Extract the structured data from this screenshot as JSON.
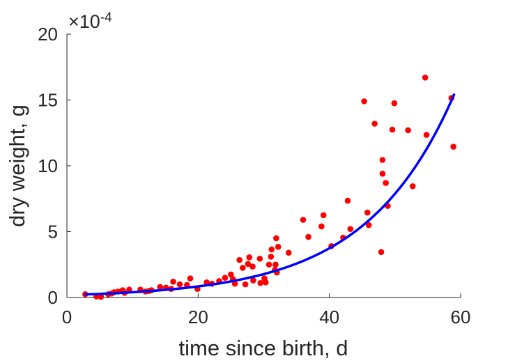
{
  "chart_data": {
    "type": "scatter",
    "xlabel": "time since birth, d",
    "ylabel": "dry weight, g",
    "y_multiplier_label": {
      "times": "×10",
      "exponent": "-4"
    },
    "xlim": [
      0,
      60
    ],
    "ylim": [
      0,
      20
    ],
    "y_scale_factor": 0.0001,
    "x_ticks": [
      0,
      20,
      40,
      60
    ],
    "y_ticks": [
      0,
      5,
      10,
      15,
      20
    ],
    "x_tick_labels": [
      "0",
      "20",
      "40",
      "60"
    ],
    "y_tick_labels": [
      "0",
      "5",
      "10",
      "15",
      "20"
    ],
    "grid": false,
    "series": [
      {
        "kind": "scatter",
        "color": "#ff0000",
        "points": [
          [
            2.8,
            0.25
          ],
          [
            4.5,
            0.08
          ],
          [
            5.2,
            0.05
          ],
          [
            6.3,
            0.25
          ],
          [
            6.8,
            0.3
          ],
          [
            7.2,
            0.4
          ],
          [
            7.8,
            0.45
          ],
          [
            8.5,
            0.55
          ],
          [
            8.8,
            0.35
          ],
          [
            9.5,
            0.6
          ],
          [
            11.2,
            0.6
          ],
          [
            12.0,
            0.45
          ],
          [
            12.5,
            0.5
          ],
          [
            12.9,
            0.55
          ],
          [
            14.2,
            0.8
          ],
          [
            15.1,
            0.75
          ],
          [
            15.9,
            0.65
          ],
          [
            16.2,
            1.2
          ],
          [
            17.2,
            1.0
          ],
          [
            18.3,
            0.95
          ],
          [
            18.8,
            1.45
          ],
          [
            19.9,
            0.65
          ],
          [
            21.3,
            1.15
          ],
          [
            22.1,
            1.05
          ],
          [
            23.2,
            1.25
          ],
          [
            24.1,
            1.5
          ],
          [
            25.0,
            1.75
          ],
          [
            25.3,
            1.4
          ],
          [
            25.6,
            1.05
          ],
          [
            26.3,
            2.85
          ],
          [
            26.8,
            2.25
          ],
          [
            27.2,
            1.0
          ],
          [
            27.6,
            2.55
          ],
          [
            27.8,
            3.05
          ],
          [
            28.3,
            2.35
          ],
          [
            28.4,
            1.3
          ],
          [
            29.4,
            2.95
          ],
          [
            29.5,
            1.1
          ],
          [
            30.1,
            1.45
          ],
          [
            30.3,
            1.15
          ],
          [
            30.8,
            2.5
          ],
          [
            31.1,
            3.1
          ],
          [
            31.2,
            3.65
          ],
          [
            31.7,
            2.1
          ],
          [
            31.8,
            2.5
          ],
          [
            31.9,
            4.5
          ],
          [
            32.2,
            3.85
          ],
          [
            32.0,
            1.9
          ],
          [
            33.8,
            3.4
          ],
          [
            36.0,
            5.9
          ],
          [
            36.8,
            4.6
          ],
          [
            38.8,
            5.4
          ],
          [
            39.1,
            6.25
          ],
          [
            40.3,
            3.9
          ],
          [
            42.1,
            4.55
          ],
          [
            42.8,
            7.35
          ],
          [
            43.2,
            5.2
          ],
          [
            45.3,
            14.9
          ],
          [
            45.8,
            6.45
          ],
          [
            46.0,
            5.5
          ],
          [
            46.9,
            13.2
          ],
          [
            47.9,
            3.45
          ],
          [
            48.1,
            10.45
          ],
          [
            48.1,
            9.4
          ],
          [
            48.6,
            8.7
          ],
          [
            48.9,
            6.95
          ],
          [
            49.6,
            12.75
          ],
          [
            49.9,
            14.75
          ],
          [
            52.0,
            12.7
          ],
          [
            52.7,
            8.45
          ],
          [
            54.6,
            16.7
          ],
          [
            54.8,
            12.35
          ],
          [
            58.6,
            15.15
          ],
          [
            58.9,
            11.45
          ]
        ]
      },
      {
        "kind": "line",
        "color": "#0000ff",
        "fit": {
          "form": "a*exp(b*x)",
          "a": 0.19,
          "b": 0.0745,
          "x_start": 2.8,
          "x_end": 59
        }
      }
    ]
  }
}
